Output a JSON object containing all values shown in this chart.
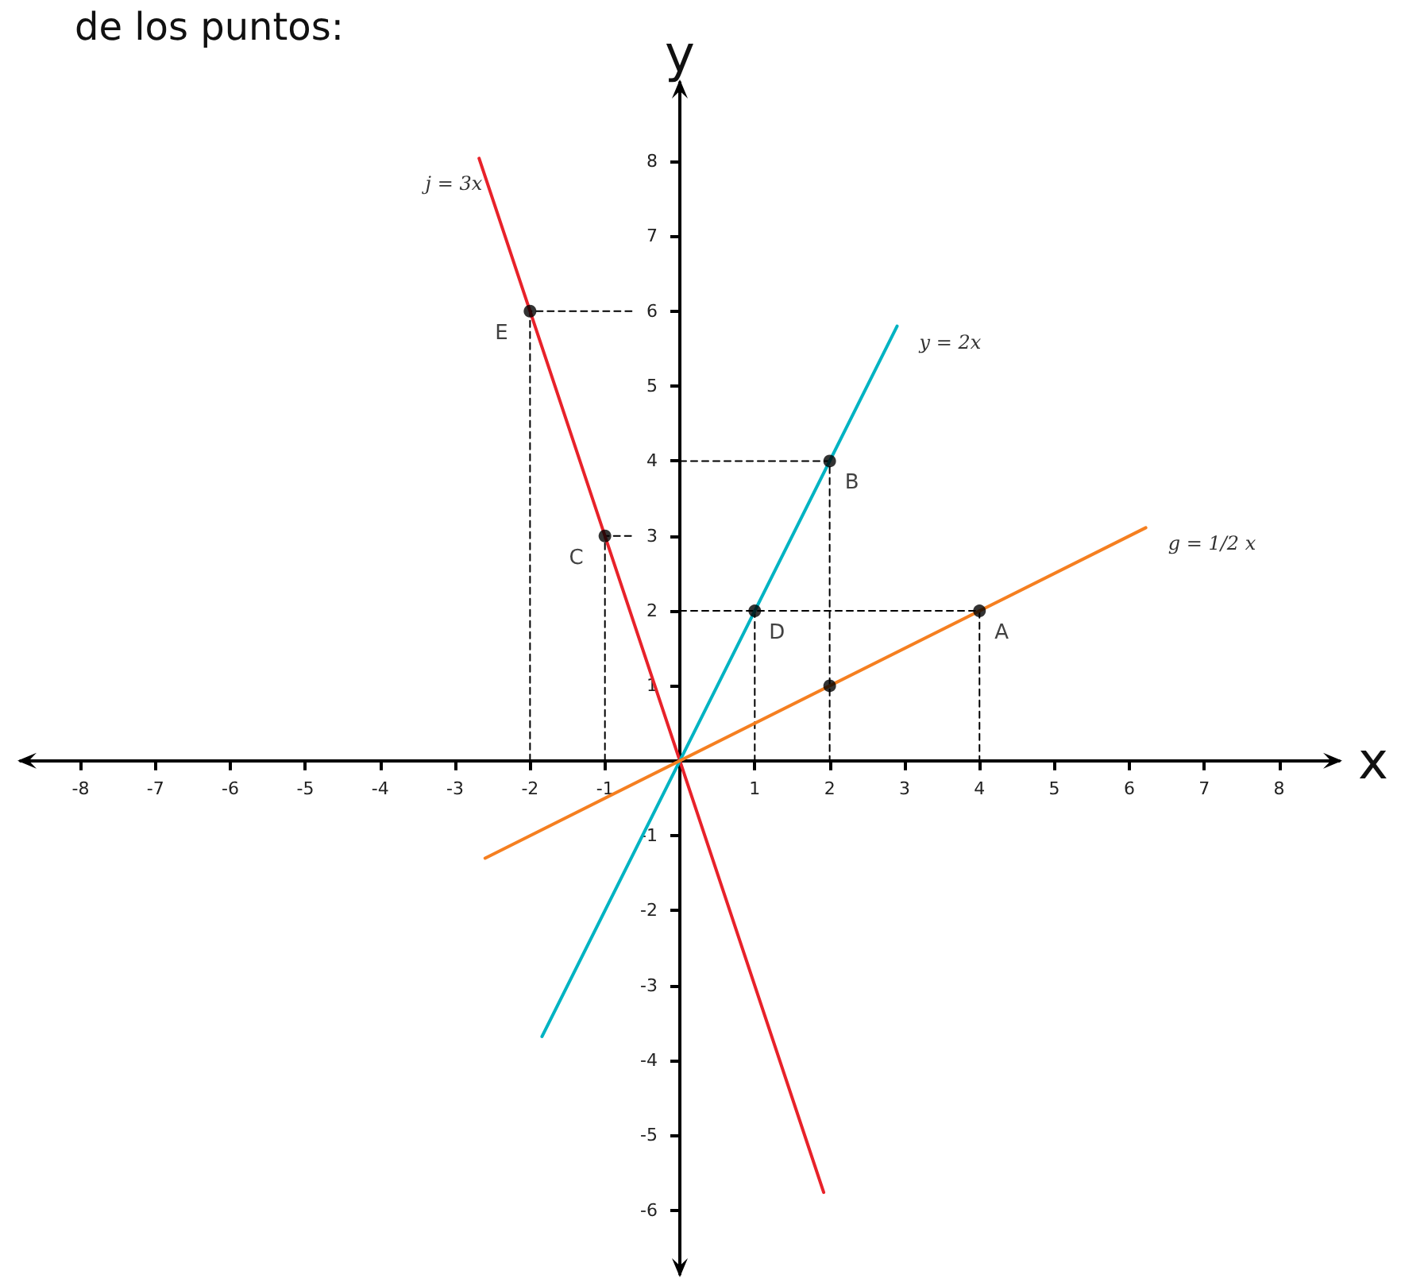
{
  "chart_data": {
    "type": "line",
    "title": "de los puntos:",
    "xlabel": "x",
    "ylabel": "y",
    "xlim": [
      -8.8,
      8.8
    ],
    "ylim": [
      -6.85,
      9.05
    ],
    "xticks": [
      -8,
      -7,
      -6,
      -5,
      -4,
      -3,
      -2,
      -1,
      1,
      2,
      3,
      4,
      5,
      6,
      7,
      8
    ],
    "yticks": [
      -6,
      -5,
      -4,
      -3,
      -2,
      -1,
      1,
      2,
      3,
      4,
      5,
      6,
      7,
      8
    ],
    "grid": false,
    "legend": false,
    "series": [
      {
        "name": "j = 3x",
        "color": "#e8222a",
        "x": [
          1.92,
          -2.68
        ],
        "values": [
          -5.76,
          8.04
        ],
        "marker": "none"
      },
      {
        "name": "y = 2x",
        "color": "#00b3c2",
        "x": [
          -1.84,
          2.9
        ],
        "values": [
          -3.68,
          5.8
        ],
        "marker": "none"
      },
      {
        "name": "g = 1/2 x",
        "color": "#f57f20",
        "x": [
          -2.6,
          6.22
        ],
        "values": [
          -1.3,
          3.11
        ],
        "marker": "none"
      },
      {
        "type": "line",
        "color": "#000000",
        "line_style": "dashed",
        "marker": "none",
        "x": [
          -2,
          -2,
          -0.6
        ],
        "values": [
          0,
          6,
          6
        ]
      },
      {
        "type": "line",
        "color": "#000000",
        "line_style": "dashed",
        "marker": "none",
        "x": [
          -1,
          -1,
          -0.6
        ],
        "values": [
          0,
          3,
          3
        ]
      },
      {
        "type": "line",
        "color": "#000000",
        "line_style": "dashed",
        "marker": "none",
        "x": [
          0,
          2,
          2
        ],
        "values": [
          4,
          4,
          0
        ]
      },
      {
        "type": "line",
        "color": "#000000",
        "line_style": "dashed",
        "marker": "none",
        "x": [
          0,
          4,
          4
        ],
        "values": [
          2,
          2,
          0
        ]
      },
      {
        "type": "line",
        "color": "#000000",
        "line_style": "dashed",
        "marker": "none",
        "x": [
          1,
          1
        ],
        "values": [
          2,
          0
        ]
      },
      {
        "type": "scatter",
        "color": "#000000",
        "marker": "circle",
        "x": [
          -2,
          -1,
          1,
          2,
          2,
          4
        ],
        "values": [
          6,
          3,
          2,
          4,
          1,
          2
        ]
      }
    ],
    "annotations": [
      {
        "text": "E",
        "x": -2,
        "y": 6
      },
      {
        "text": "C",
        "x": -1,
        "y": 3
      },
      {
        "text": "D",
        "x": 1,
        "y": 2
      },
      {
        "text": "B",
        "x": 2,
        "y": 4
      },
      {
        "text": "A",
        "x": 4,
        "y": 2
      }
    ]
  }
}
